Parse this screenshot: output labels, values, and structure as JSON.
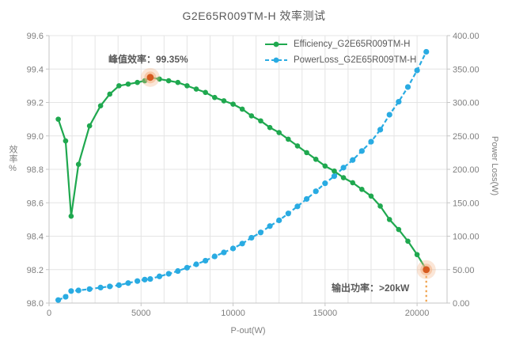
{
  "title": "G2E65R009TM-H 效率测试",
  "axes": {
    "x_label": "P-out(W)",
    "y_left_label": "效率%",
    "y_right_label": "Power Loss(W)"
  },
  "legend": {
    "efficiency_label": "Efficiency_G2E65R009TM-H",
    "powerloss_label": "PowerLoss_G2E65R009TM-H"
  },
  "annotations": {
    "peak_text": "峰值效率：99.35%",
    "output_text": "输出功率：>20kW"
  },
  "colors": {
    "efficiency": "#1FA84F",
    "powerloss": "#29ABE2",
    "highlight_dot": "#D65A1F",
    "highlight_glow": "#F4B183",
    "dropline": "#F0A14B",
    "grid": "#E4E4E4",
    "axis": "#C6C6C6",
    "text": "#595959",
    "tick_text": "#7F7F7F"
  },
  "chart_data": {
    "type": "line",
    "title": "G2E65R009TM-H 效率测试",
    "xlabel": "P-out(W)",
    "ylabel_left": "效率%",
    "ylabel_right": "Power Loss(W)",
    "xlim": [
      0,
      21630
    ],
    "ylim_left": [
      98.0,
      99.6
    ],
    "ylim_right": [
      0,
      400
    ],
    "x_major_ticks": [
      0,
      5000,
      10000,
      15000,
      20000
    ],
    "x_minor_grid_step": 1250,
    "y_left_ticks": [
      98.0,
      98.2,
      98.4,
      98.6,
      98.8,
      99.0,
      99.2,
      99.4,
      99.6
    ],
    "y_right_ticks": [
      0,
      50,
      100,
      150,
      200,
      250,
      300,
      350,
      400
    ],
    "grid": true,
    "legend_position": "top-right-inside",
    "x": [
      500,
      900,
      1200,
      1600,
      2200,
      2800,
      3300,
      3800,
      4300,
      4800,
      5200,
      5500,
      6000,
      6500,
      7000,
      7500,
      8000,
      8500,
      9000,
      9500,
      10000,
      10500,
      11000,
      11500,
      12000,
      12500,
      13000,
      13500,
      14000,
      14500,
      15000,
      15500,
      16000,
      16500,
      17000,
      17500,
      18000,
      18500,
      19000,
      19500,
      20000,
      20500
    ],
    "series": [
      {
        "name": "Efficiency_G2E65R009TM-H",
        "axis": "left",
        "style": "solid",
        "values": [
          99.1,
          98.97,
          98.52,
          98.83,
          99.06,
          99.18,
          99.25,
          99.3,
          99.31,
          99.32,
          99.33,
          99.35,
          99.34,
          99.33,
          99.32,
          99.3,
          99.28,
          99.26,
          99.23,
          99.21,
          99.19,
          99.16,
          99.12,
          99.09,
          99.05,
          99.02,
          98.98,
          98.94,
          98.9,
          98.86,
          98.82,
          98.79,
          98.75,
          98.72,
          98.68,
          98.64,
          98.58,
          98.5,
          98.44,
          98.37,
          98.29,
          98.2
        ]
      },
      {
        "name": "PowerLoss_G2E65R009TM-H",
        "axis": "right",
        "style": "dashed",
        "values": [
          4.5,
          9.4,
          18.0,
          18.9,
          20.9,
          23.2,
          24.9,
          26.8,
          29.9,
          32.9,
          35.1,
          36.0,
          39.9,
          43.8,
          47.9,
          52.9,
          58.0,
          63.4,
          69.8,
          75.7,
          81.7,
          89.0,
          97.7,
          105.6,
          115.1,
          123.7,
          134.0,
          144.6,
          155.7,
          167.2,
          179.1,
          189.8,
          202.5,
          213.9,
          227.4,
          241.3,
          259.3,
          281.7,
          301.1,
          323.1,
          348.0,
          375.8
        ]
      }
    ],
    "annotations": [
      {
        "text": "峰值效率：99.35%",
        "x": 5500,
        "value": 99.35,
        "axis": "left",
        "dropline": false
      },
      {
        "text": "输出功率：>20kW",
        "x": 20500,
        "value": 98.2,
        "axis": "left",
        "dropline": true
      }
    ]
  }
}
